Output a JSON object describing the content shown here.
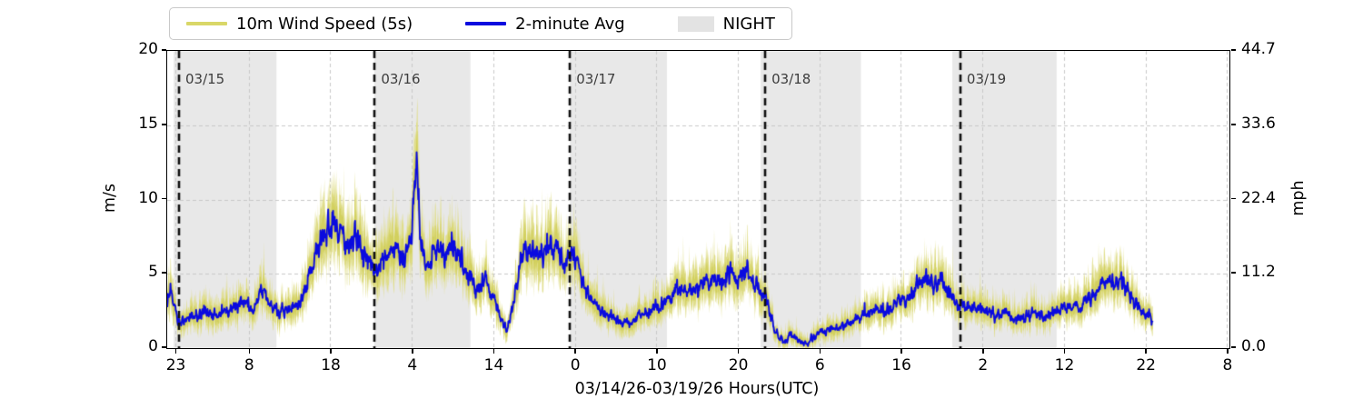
{
  "legend": {
    "items": [
      {
        "label": "10m Wind Speed (5s)",
        "swatch": "line",
        "color": "#d9d768"
      },
      {
        "label": "2-minute Avg",
        "swatch": "line",
        "color": "#0a0adf"
      },
      {
        "label": "NIGHT",
        "swatch": "patch",
        "color": "#e3e3e3"
      }
    ]
  },
  "chart_data": {
    "type": "line",
    "title": "",
    "xlabel": "03/14/26-03/19/26  Hours(UTC)",
    "ylabel_left": "m/s",
    "ylabel_right": "mph",
    "time_origin": "hours measured from 03/14/26 23:00 UTC",
    "x_domain_hours": [
      -1.0,
      129.3
    ],
    "ylim_left": [
      0,
      20
    ],
    "ylim_right": [
      0.0,
      44.7
    ],
    "grid": true,
    "x_ticks": [
      {
        "t": 0,
        "label": "23"
      },
      {
        "t": 9,
        "label": "8"
      },
      {
        "t": 19,
        "label": "18"
      },
      {
        "t": 29,
        "label": "4"
      },
      {
        "t": 39,
        "label": "14"
      },
      {
        "t": 49,
        "label": "0"
      },
      {
        "t": 59,
        "label": "10"
      },
      {
        "t": 69,
        "label": "20"
      },
      {
        "t": 79,
        "label": "6"
      },
      {
        "t": 89,
        "label": "16"
      },
      {
        "t": 99,
        "label": "2"
      },
      {
        "t": 109,
        "label": "12"
      },
      {
        "t": 119,
        "label": "22"
      },
      {
        "t": 129,
        "label": "8"
      }
    ],
    "y_ticks_left": [
      {
        "v": 0,
        "label": "0"
      },
      {
        "v": 5,
        "label": "5"
      },
      {
        "v": 10,
        "label": "10"
      },
      {
        "v": 15,
        "label": "15"
      },
      {
        "v": 20,
        "label": "20"
      }
    ],
    "y_ticks_right": [
      {
        "v": 0,
        "label": "0.0"
      },
      {
        "v": 5,
        "label": "11.2"
      },
      {
        "v": 10,
        "label": "22.4"
      },
      {
        "v": 15,
        "label": "33.6"
      },
      {
        "v": 20,
        "label": "44.7"
      }
    ],
    "y_gridlines": [
      5,
      10,
      15
    ],
    "day_markers": [
      {
        "t": 0.45,
        "label": "03/15"
      },
      {
        "t": 24.45,
        "label": "03/16"
      },
      {
        "t": 48.4,
        "label": "03/17"
      },
      {
        "t": 72.35,
        "label": "03/18"
      },
      {
        "t": 96.3,
        "label": "03/19"
      }
    ],
    "night_spans_hours": [
      [
        -0.2,
        12.4
      ],
      [
        24.4,
        36.2
      ],
      [
        48.4,
        60.3
      ],
      [
        71.8,
        84.1
      ],
      [
        95.3,
        108.1
      ]
    ],
    "data_end_hours": 119.9,
    "series": [
      {
        "name": "10m Wind Speed (5s)",
        "color_outer": "#e0de8c",
        "color_inner": "#d2d05e",
        "style": "noisy-envelope-around-average",
        "envelope_amp": {
          "base": 0.75,
          "scale": 0.42
        }
      },
      {
        "name": "2-minute Avg",
        "color": "#0a0adf",
        "style": "jagged-line",
        "anchors_hours_mps": [
          [
            -1.0,
            3.2
          ],
          [
            -0.6,
            4.2
          ],
          [
            0.3,
            1.6
          ],
          [
            1.5,
            2.0
          ],
          [
            3,
            2.4
          ],
          [
            5,
            2.3
          ],
          [
            7,
            2.6
          ],
          [
            8.5,
            3.2
          ],
          [
            9.5,
            2.6
          ],
          [
            10.5,
            3.8
          ],
          [
            11.5,
            3.0
          ],
          [
            12.5,
            2.5
          ],
          [
            14,
            2.6
          ],
          [
            15.5,
            3.2
          ],
          [
            16.2,
            4.5
          ],
          [
            17,
            6.0
          ],
          [
            18,
            7.5
          ],
          [
            19,
            8.3
          ],
          [
            19.5,
            8.8
          ],
          [
            20,
            7.8
          ],
          [
            21,
            6.8
          ],
          [
            22,
            7.6
          ],
          [
            23,
            6.5
          ],
          [
            24,
            5.5
          ],
          [
            25,
            5.0
          ],
          [
            26,
            6.5
          ],
          [
            27,
            7.0
          ],
          [
            28,
            6.0
          ],
          [
            29,
            7.5
          ],
          [
            29.6,
            13.0
          ],
          [
            30.2,
            6.5
          ],
          [
            31,
            5.5
          ],
          [
            32,
            6.8
          ],
          [
            33,
            6.2
          ],
          [
            34,
            6.8
          ],
          [
            35,
            6.0
          ],
          [
            36,
            5.0
          ],
          [
            37,
            4.0
          ],
          [
            38,
            4.8
          ],
          [
            39,
            3.5
          ],
          [
            40,
            1.8
          ],
          [
            40.6,
            1.3
          ],
          [
            41.5,
            3.0
          ],
          [
            42.5,
            6.2
          ],
          [
            43.5,
            6.8
          ],
          [
            45,
            6.0
          ],
          [
            46,
            6.8
          ],
          [
            47,
            6.3
          ],
          [
            48,
            5.8
          ],
          [
            48.8,
            6.5
          ],
          [
            50,
            4.5
          ],
          [
            51,
            3.2
          ],
          [
            52,
            2.6
          ],
          [
            53,
            2.2
          ],
          [
            54.5,
            1.8
          ],
          [
            56,
            1.7
          ],
          [
            57.5,
            2.3
          ],
          [
            59,
            2.8
          ],
          [
            60.5,
            3.2
          ],
          [
            62,
            4.2
          ],
          [
            63.5,
            3.8
          ],
          [
            65,
            4.6
          ],
          [
            66.5,
            4.2
          ],
          [
            68,
            5.2
          ],
          [
            69,
            4.8
          ],
          [
            70,
            5.3
          ],
          [
            71,
            4.4
          ],
          [
            72,
            3.8
          ],
          [
            72.7,
            3.0
          ],
          [
            73.5,
            1.2
          ],
          [
            74.5,
            0.4
          ],
          [
            75.5,
            0.8
          ],
          [
            76.5,
            0.5
          ],
          [
            77.5,
            0.3
          ],
          [
            78.5,
            0.8
          ],
          [
            80,
            1.2
          ],
          [
            82,
            1.6
          ],
          [
            84,
            2.0
          ],
          [
            85.5,
            2.6
          ],
          [
            87,
            2.4
          ],
          [
            88.5,
            3.0
          ],
          [
            90,
            3.4
          ],
          [
            91,
            4.2
          ],
          [
            92,
            4.8
          ],
          [
            93,
            4.4
          ],
          [
            94,
            4.6
          ],
          [
            95,
            3.6
          ],
          [
            96,
            3.0
          ],
          [
            97.5,
            2.8
          ],
          [
            99,
            2.6
          ],
          [
            100.5,
            2.2
          ],
          [
            102,
            2.4
          ],
          [
            103.5,
            1.9
          ],
          [
            105,
            2.3
          ],
          [
            106.5,
            2.1
          ],
          [
            108,
            2.4
          ],
          [
            109.5,
            2.7
          ],
          [
            111,
            3.0
          ],
          [
            112.5,
            3.6
          ],
          [
            114,
            4.6
          ],
          [
            115,
            4.3
          ],
          [
            116,
            4.8
          ],
          [
            117,
            3.6
          ],
          [
            118,
            2.8
          ],
          [
            119,
            2.2
          ],
          [
            119.9,
            1.9
          ]
        ]
      }
    ],
    "colors": {
      "night": "#e8e8e8",
      "grid": "#c8c8c8",
      "day_line": "#101010",
      "day_label": "#3d3d3d",
      "spine": "#000000"
    }
  }
}
